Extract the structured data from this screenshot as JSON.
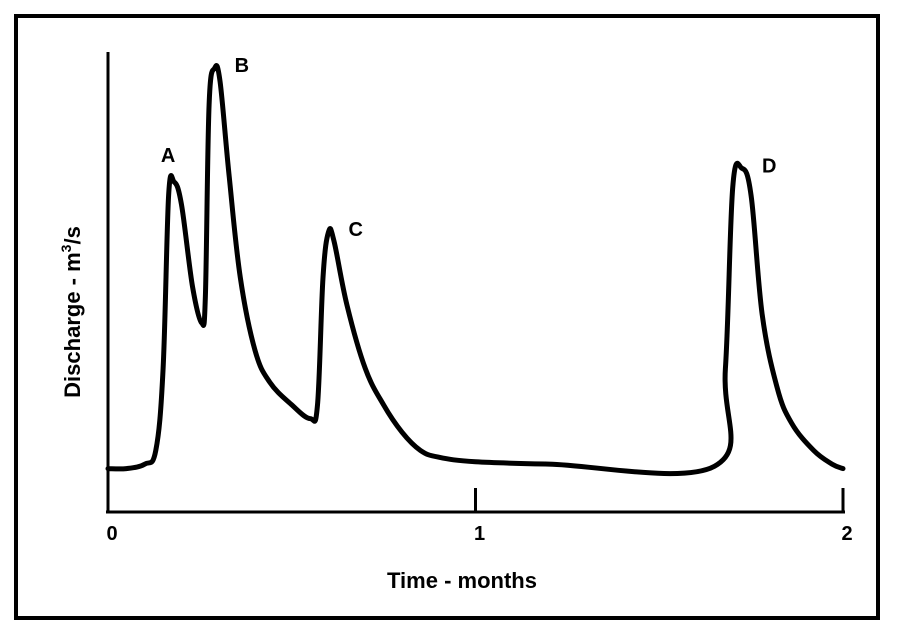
{
  "chart_data": {
    "type": "line",
    "title": "",
    "xlabel": "Time - months",
    "ylabel_prefix": "Discharge - m",
    "ylabel_sup": "3",
    "ylabel_suffix": "/s",
    "xlim": [
      0,
      2
    ],
    "ylim": [
      0,
      1
    ],
    "grid": false,
    "x_ticks": [
      {
        "value": 0,
        "label": "0"
      },
      {
        "value": 1,
        "label": "1"
      },
      {
        "value": 2,
        "label": "2"
      }
    ],
    "series": [
      {
        "values": [
          [
            0.0,
            0.08
          ],
          [
            0.05,
            0.08
          ],
          [
            0.1,
            0.09
          ],
          [
            0.13,
            0.12
          ],
          [
            0.15,
            0.3
          ],
          [
            0.165,
            0.68
          ],
          [
            0.18,
            0.71
          ],
          [
            0.2,
            0.66
          ],
          [
            0.23,
            0.48
          ],
          [
            0.255,
            0.4
          ],
          [
            0.265,
            0.46
          ],
          [
            0.275,
            0.88
          ],
          [
            0.29,
            0.96
          ],
          [
            0.305,
            0.93
          ],
          [
            0.33,
            0.72
          ],
          [
            0.36,
            0.5
          ],
          [
            0.4,
            0.34
          ],
          [
            0.44,
            0.27
          ],
          [
            0.5,
            0.22
          ],
          [
            0.55,
            0.19
          ],
          [
            0.57,
            0.22
          ],
          [
            0.585,
            0.5
          ],
          [
            0.6,
            0.6
          ],
          [
            0.615,
            0.58
          ],
          [
            0.65,
            0.44
          ],
          [
            0.7,
            0.3
          ],
          [
            0.75,
            0.22
          ],
          [
            0.8,
            0.16
          ],
          [
            0.85,
            0.12
          ],
          [
            0.9,
            0.105
          ],
          [
            1.0,
            0.095
          ],
          [
            1.2,
            0.09
          ],
          [
            1.65,
            0.085
          ],
          [
            1.68,
            0.3
          ],
          [
            1.7,
            0.7
          ],
          [
            1.725,
            0.74
          ],
          [
            1.75,
            0.68
          ],
          [
            1.78,
            0.42
          ],
          [
            1.82,
            0.26
          ],
          [
            1.86,
            0.18
          ],
          [
            1.92,
            0.12
          ],
          [
            1.97,
            0.09
          ],
          [
            2.0,
            0.08
          ]
        ]
      }
    ],
    "annotations": [
      {
        "label": "A",
        "x": 0.18,
        "y": 0.71
      },
      {
        "label": "B",
        "x": 0.29,
        "y": 0.96
      },
      {
        "label": "C",
        "x": 0.6,
        "y": 0.6
      },
      {
        "label": "D",
        "x": 1.725,
        "y": 0.74
      }
    ]
  },
  "colors": {
    "line": "#000000",
    "background": "#ffffff"
  }
}
